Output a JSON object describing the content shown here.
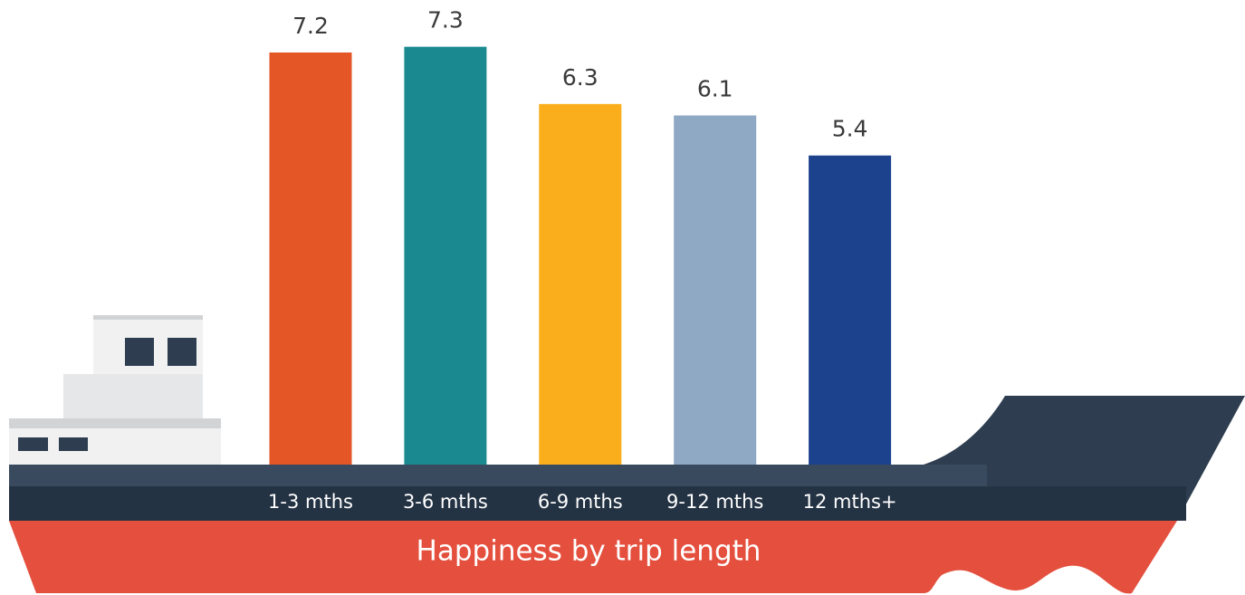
{
  "chart_data": {
    "type": "bar",
    "title": "Happiness by trip length",
    "categories": [
      "1-3 mths",
      "3-6 mths",
      "6-9 mths",
      "9-12 mths",
      "12 mths+"
    ],
    "values": [
      7.2,
      7.3,
      6.3,
      6.1,
      5.4
    ],
    "colors": [
      "#e55627",
      "#1a8a90",
      "#fbae1b",
      "#8fa8c3",
      "#1c428e"
    ]
  }
}
